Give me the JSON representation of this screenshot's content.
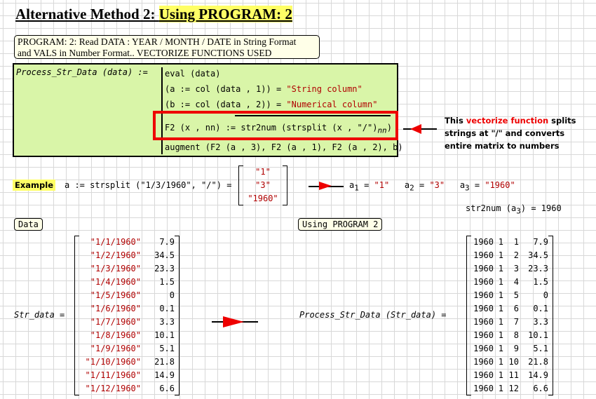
{
  "title": {
    "plain": "Alternative Method 2: ",
    "highlight": "Using PROGRAM: 2"
  },
  "note": {
    "line1": "PROGRAM: 2: Read DATA : YEAR / MONTH / DATE  in String Format",
    "line2": "and VALS in Number Format.. VECTORIZE FUNCTIONS USED"
  },
  "program": {
    "name": "Process_Str_Data",
    "arg": "data",
    "assign": ":=",
    "lines": [
      "eval (data)",
      "(a := col (data , 1)) = ",
      "(b := col (data , 2)) = ",
      "F2 (x , nn) := str2num (strsplit (x , \"/\")",
      "augment (F2 (a , 3), F2 (a , 1), F2 (a , 2), b)"
    ],
    "str1": "\"String column\"",
    "str2": "\"Numerical column\"",
    "sub": "nn"
  },
  "annotation": {
    "pre": "This ",
    "red": "vectorize  function",
    "post": " splits strings at \"/\" and converts entire matrix to numbers"
  },
  "example": {
    "label": "Example",
    "expr": "a := strsplit (\"1/3/1960\", \"/\") =",
    "result": [
      "\"1\"",
      "\"3\"",
      "\"1960\""
    ],
    "a1": "\"1\"",
    "a2": "\"3\"",
    "a3": "\"1960\"",
    "str2num_expr": "str2num",
    "str2num_result": "= 1960"
  },
  "data_label": "Data",
  "prog_label": "Using PROGRAM 2",
  "str_data_name": "Str_data =",
  "process_call": "Process_Str_Data (Str_data) =",
  "str_data": [
    [
      "\"1/1/1960\"",
      "7.9"
    ],
    [
      "\"1/2/1960\"",
      "34.5"
    ],
    [
      "\"1/3/1960\"",
      "23.3"
    ],
    [
      "\"1/4/1960\"",
      "1.5"
    ],
    [
      "\"1/5/1960\"",
      "0"
    ],
    [
      "\"1/6/1960\"",
      "0.1"
    ],
    [
      "\"1/7/1960\"",
      "3.3"
    ],
    [
      "\"1/8/1960\"",
      "10.1"
    ],
    [
      "\"1/9/1960\"",
      "5.1"
    ],
    [
      "\"1/10/1960\"",
      "21.8"
    ],
    [
      "\"1/11/1960\"",
      "14.9"
    ],
    [
      "\"1/12/1960\"",
      "6.6"
    ]
  ],
  "result": [
    [
      "1960",
      "1",
      "1",
      "7.9"
    ],
    [
      "1960",
      "1",
      "2",
      "34.5"
    ],
    [
      "1960",
      "1",
      "3",
      "23.3"
    ],
    [
      "1960",
      "1",
      "4",
      "1.5"
    ],
    [
      "1960",
      "1",
      "5",
      "0"
    ],
    [
      "1960",
      "1",
      "6",
      "0.1"
    ],
    [
      "1960",
      "1",
      "7",
      "3.3"
    ],
    [
      "1960",
      "1",
      "8",
      "10.1"
    ],
    [
      "1960",
      "1",
      "9",
      "5.1"
    ],
    [
      "1960",
      "1",
      "10",
      "21.8"
    ],
    [
      "1960",
      "1",
      "11",
      "14.9"
    ],
    [
      "1960",
      "1",
      "12",
      "6.6"
    ]
  ],
  "colors": {
    "highlight": "#ffff66",
    "program_bg": "#d9f5a8",
    "string": "#b00000",
    "accent_red": "#e00000"
  }
}
